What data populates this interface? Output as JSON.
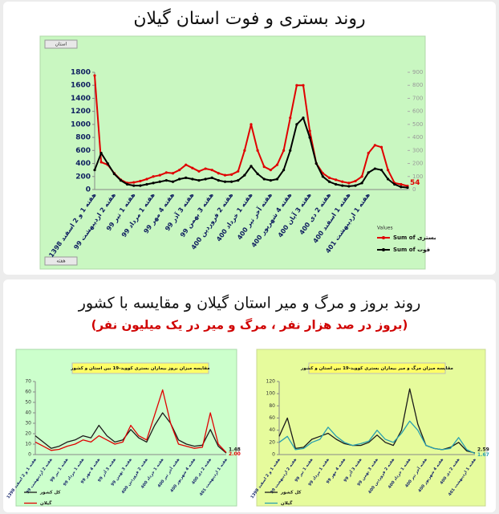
{
  "header": {
    "title": "روند بستری و فوت استان گیلان"
  },
  "section2": {
    "title": "روند بروز و مرگ و میر استان گیلان و مقایسه با کشور",
    "subtitle": "(بروز در صد هزار نفر ، مرگ و میر در یک میلیون نفر)"
  },
  "chart_data": [
    {
      "type": "line",
      "categories": [
        "هفته 1 و 2 اسفند 1398",
        null,
        null,
        "هفته 2 اردیبهشت 99",
        null,
        null,
        "هفته 1 تیر 99",
        null,
        null,
        "هفته 1 مرداد 99",
        null,
        null,
        "هفته 4 مهر 99",
        null,
        null,
        "هفته 3 آذر 99",
        null,
        null,
        "هفته 3 بهمن 99",
        null,
        null,
        "هفته 2 فروردین 400",
        null,
        null,
        "هفته 1 خرداد 400",
        null,
        null,
        "هفته آخر تیر 400",
        null,
        null,
        "هفته 4 شهریور 400",
        null,
        null,
        "هفته 3 آبان 400",
        null,
        null,
        "هفته 2 دی 400",
        null,
        null,
        "هفته 1 اسفند 400",
        null,
        null,
        "هفته 1 اردیبهشت 401",
        null,
        null,
        null,
        null,
        null,
        null
      ],
      "series": [
        {
          "name": "Sum of بستری",
          "color": "#e00000",
          "values": [
            1750,
            420,
            380,
            250,
            150,
            100,
            110,
            130,
            160,
            200,
            220,
            260,
            250,
            300,
            380,
            330,
            280,
            320,
            300,
            250,
            220,
            230,
            280,
            600,
            1000,
            600,
            350,
            300,
            380,
            600,
            1100,
            1600,
            1600,
            900,
            400,
            250,
            180,
            150,
            120,
            100,
            130,
            200,
            560,
            680,
            650,
            300,
            100,
            80,
            54
          ],
          "value_labels": [
            null,
            null,
            null,
            null,
            null,
            null,
            null,
            null,
            null,
            null,
            null,
            null,
            null,
            null,
            null,
            null,
            null,
            null,
            null,
            null,
            null,
            null,
            null,
            null,
            null,
            null,
            null,
            null,
            null,
            null,
            null,
            null,
            null,
            null,
            null,
            null,
            null,
            null,
            null,
            null,
            null,
            null,
            null,
            null,
            null,
            null,
            null,
            null,
            "54"
          ]
        },
        {
          "name": "Sum of فوت",
          "color": "#000000",
          "axis": "y2",
          "values": [
            150,
            280,
            200,
            120,
            70,
            40,
            30,
            30,
            40,
            50,
            60,
            70,
            60,
            80,
            90,
            80,
            70,
            80,
            90,
            70,
            60,
            60,
            70,
            110,
            180,
            120,
            80,
            70,
            80,
            150,
            300,
            500,
            550,
            400,
            200,
            100,
            60,
            40,
            30,
            25,
            30,
            50,
            130,
            160,
            150,
            80,
            40,
            20,
            15
          ]
        }
      ],
      "ylim": [
        0,
        1800
      ],
      "yticks": [
        0,
        200,
        400,
        600,
        800,
        1000,
        1200,
        1400,
        1600,
        1800
      ],
      "y2lim": [
        0,
        900
      ],
      "y2ticks": [
        0,
        100,
        200,
        300,
        400,
        500,
        600,
        700,
        800,
        900
      ],
      "legend_title": "Values",
      "legend": "bottom-right",
      "x_field": "هفته",
      "filter": "استان"
    },
    {
      "type": "line",
      "title": "مقایسه میزان بروز بیماران بستری کووید-19 بین استان و کشور",
      "categories": [
        "هفته 1 و 2 اسفند 1398",
        null,
        "هفته 2 اردیبهشت 99",
        null,
        "هفته 1 تیر 99",
        null,
        "هفته 1 مرداد 99",
        null,
        "هفته 4 مهر 99",
        null,
        "هفته 3 آذر 99",
        null,
        "هفته 3 بهمن 99",
        null,
        "هفته 2 فروردین 400",
        null,
        "هفته 1 خرداد 400",
        null,
        "هفته آخر تیر 400",
        null,
        "هفته 4 شهریور 400",
        null,
        "هفته 2 دی 400",
        null,
        "هفته 1 اردیبهشت 401"
      ],
      "series": [
        {
          "name": "کل کشور",
          "color": "#1a1a1a",
          "values": [
            18,
            12,
            6,
            8,
            12,
            14,
            18,
            16,
            28,
            18,
            12,
            14,
            24,
            16,
            12,
            28,
            40,
            30,
            14,
            10,
            8,
            9,
            24,
            8,
            1.48
          ],
          "value_labels": [
            null,
            null,
            null,
            null,
            null,
            null,
            null,
            null,
            null,
            null,
            null,
            null,
            null,
            null,
            null,
            null,
            null,
            null,
            null,
            null,
            null,
            null,
            null,
            null,
            "1.48"
          ]
        },
        {
          "name": "گیلان",
          "color": "#e00000",
          "values": [
            12,
            8,
            4,
            5,
            8,
            10,
            14,
            12,
            18,
            14,
            10,
            12,
            28,
            18,
            14,
            38,
            62,
            30,
            10,
            8,
            6,
            7,
            40,
            10,
            2
          ],
          "value_labels": [
            null,
            null,
            null,
            null,
            null,
            null,
            null,
            null,
            null,
            null,
            null,
            null,
            null,
            null,
            null,
            null,
            null,
            null,
            null,
            null,
            null,
            null,
            null,
            null,
            "2.00"
          ]
        }
      ],
      "ylim": [
        0,
        70
      ],
      "yticks": [
        0,
        10,
        20,
        30,
        40,
        50,
        60,
        70
      ],
      "legend": "bottom-left"
    },
    {
      "type": "line",
      "title": "مقایسه میزان مرگ و میر بیماران بستری کووید-19 بین استان و کشور",
      "categories": [
        "هفته 1 و 2 اسفند 1398",
        null,
        "هفته 2 اردیبهشت 99",
        null,
        "هفته 1 تیر 99",
        null,
        "هفته 1 مرداد 99",
        null,
        "هفته 4 مهر 99",
        null,
        "هفته 3 آذر 99",
        null,
        "هفته 3 بهمن 99",
        null,
        "هفته 2 فروردین 400",
        null,
        "هفته 1 خرداد 400",
        null,
        "هفته آخر تیر 400",
        null,
        "هفته 4 شهریور 400",
        null,
        "هفته 2 دی 400",
        null,
        "هفته 1 اردیبهشت 401"
      ],
      "series": [
        {
          "name": "کل کشور",
          "color": "#1a1a1a",
          "values": [
            30,
            60,
            10,
            12,
            25,
            30,
            35,
            25,
            18,
            15,
            15,
            20,
            32,
            20,
            15,
            40,
            108,
            50,
            15,
            10,
            8,
            12,
            20,
            6,
            2.59
          ],
          "value_labels": [
            null,
            null,
            null,
            null,
            null,
            null,
            null,
            null,
            null,
            null,
            null,
            null,
            null,
            null,
            null,
            null,
            null,
            null,
            null,
            null,
            null,
            null,
            null,
            null,
            "2.59"
          ]
        },
        {
          "name": "گیلان",
          "color": "#2aa0b0",
          "values": [
            20,
            30,
            8,
            10,
            20,
            25,
            45,
            30,
            20,
            15,
            18,
            22,
            40,
            25,
            20,
            35,
            55,
            40,
            15,
            10,
            8,
            10,
            28,
            8,
            1.67
          ],
          "value_labels": [
            null,
            null,
            null,
            null,
            null,
            null,
            null,
            null,
            null,
            null,
            null,
            null,
            null,
            null,
            null,
            null,
            null,
            null,
            null,
            null,
            null,
            null,
            null,
            null,
            "1.67"
          ]
        }
      ],
      "ylim": [
        0,
        120
      ],
      "yticks": [
        0,
        20,
        40,
        60,
        80,
        100,
        120
      ],
      "legend": "bottom-left"
    }
  ]
}
